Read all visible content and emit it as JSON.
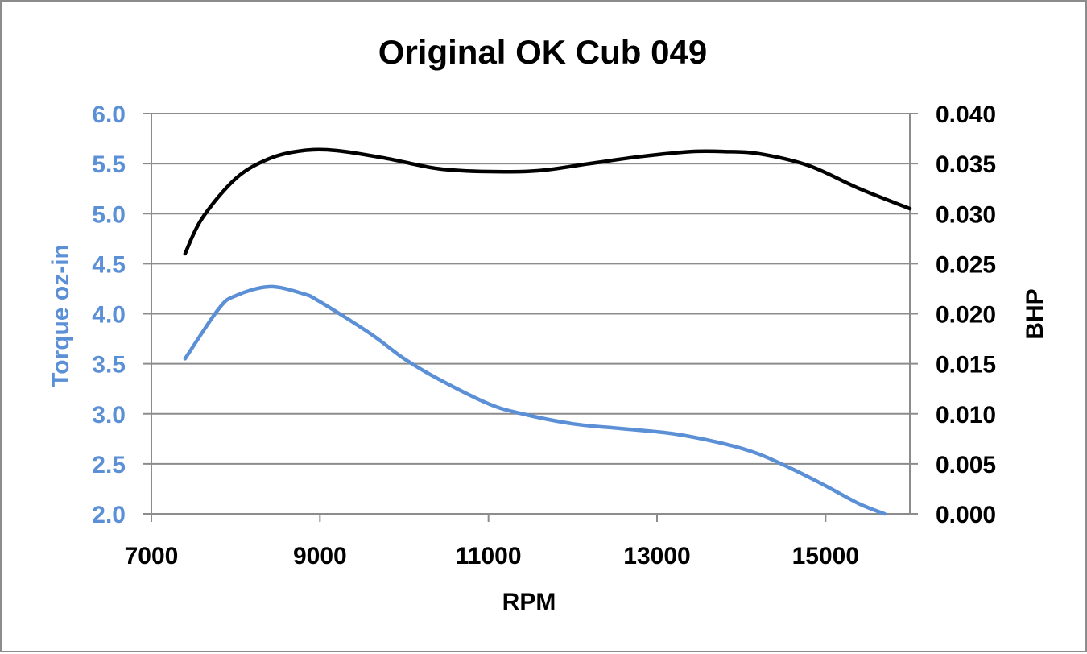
{
  "chart_data": {
    "type": "line",
    "title": "Original OK Cub 049",
    "xlabel": "RPM",
    "ylabel_left": "Torque oz-in",
    "ylabel_right": "BHP",
    "xlim": [
      7000,
      16000
    ],
    "ylim_left": [
      2.0,
      6.0
    ],
    "ylim_right": [
      0.0,
      0.04
    ],
    "x_ticks": [
      "7000",
      "9000",
      "11000",
      "13000",
      "15000"
    ],
    "x_tick_values": [
      7000,
      9000,
      11000,
      13000,
      15000
    ],
    "y_left_ticks": [
      "2.0",
      "2.5",
      "3.0",
      "3.5",
      "4.0",
      "4.5",
      "5.0",
      "5.5",
      "6.0"
    ],
    "y_left_tick_values": [
      2.0,
      2.5,
      3.0,
      3.5,
      4.0,
      4.5,
      5.0,
      5.5,
      6.0
    ],
    "y_right_ticks": [
      "0.000",
      "0.005",
      "0.010",
      "0.015",
      "0.020",
      "0.025",
      "0.030",
      "0.035",
      "0.040"
    ],
    "y_right_tick_values": [
      0.0,
      0.005,
      0.01,
      0.015,
      0.02,
      0.025,
      0.03,
      0.035,
      0.04
    ],
    "grid": true,
    "legend": false,
    "series": [
      {
        "axis": "left",
        "color": "#5b8fd6",
        "x": [
          7400,
          7800,
          8000,
          8400,
          8800,
          9000,
          9600,
          10000,
          10400,
          11000,
          11400,
          12000,
          12600,
          13200,
          13800,
          14200,
          14600,
          15000,
          15400,
          15700
        ],
        "values": [
          3.55,
          4.05,
          4.18,
          4.27,
          4.2,
          4.12,
          3.8,
          3.55,
          3.35,
          3.1,
          3.0,
          2.9,
          2.85,
          2.8,
          2.7,
          2.6,
          2.45,
          2.28,
          2.1,
          2.0
        ]
      },
      {
        "axis": "right",
        "color": "#000000",
        "x": [
          7400,
          7600,
          8000,
          8400,
          8800,
          9200,
          9800,
          10400,
          11000,
          11600,
          12200,
          12800,
          13400,
          13800,
          14200,
          14800,
          15400,
          16000
        ],
        "values": [
          0.026,
          0.0295,
          0.0335,
          0.0355,
          0.0363,
          0.0363,
          0.0355,
          0.0345,
          0.0342,
          0.0343,
          0.035,
          0.0357,
          0.0362,
          0.0362,
          0.036,
          0.0348,
          0.0325,
          0.0305
        ]
      }
    ]
  }
}
